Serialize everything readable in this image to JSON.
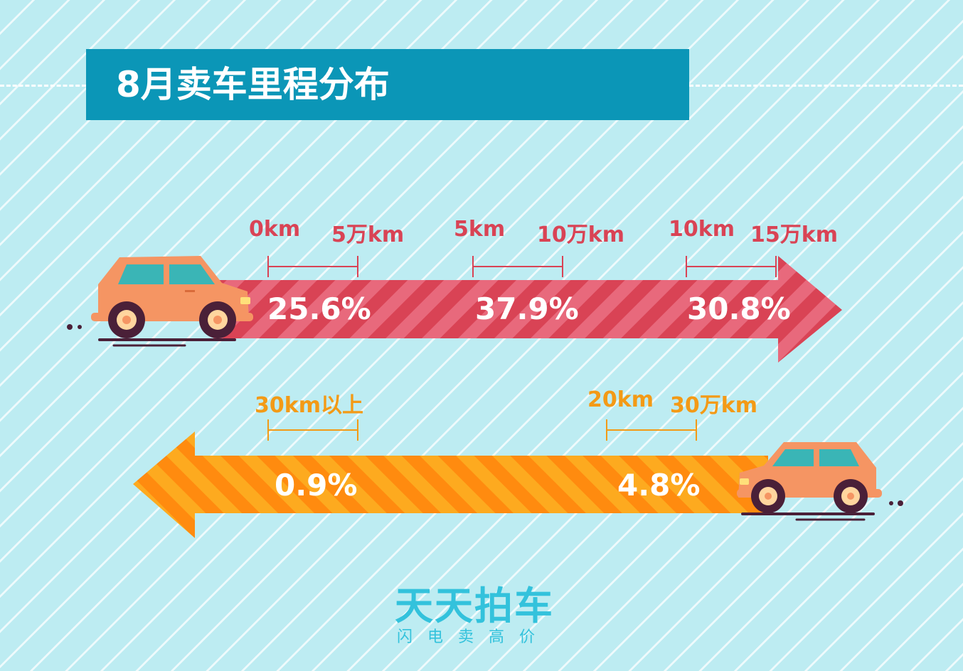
{
  "title": "8月卖车里程分布",
  "colors": {
    "banner": "#0b96b7",
    "top_arrow": "#d94355",
    "top_arrow_stripe": "#e8697c",
    "top_label": "#d94355",
    "bottom_arrow": "#ff8b0f",
    "bottom_arrow_stripe": "#fdaa1f",
    "bottom_label": "#f39a16",
    "car_body": "#f59563",
    "brand": "#33c2dc"
  },
  "chart_data": {
    "type": "bar",
    "categories": [
      "0km 5万km",
      "5km 10万km",
      "10km 15万km",
      "20km 30万km",
      "30km以上"
    ],
    "values": [
      25.6,
      37.9,
      30.8,
      4.8,
      0.9
    ],
    "unit": "%"
  },
  "segments_top": [
    {
      "from_label": "0km",
      "to_label": "5万km",
      "percent": "25.6%"
    },
    {
      "from_label": "5km",
      "to_label": "10万km",
      "percent": "37.9%"
    },
    {
      "from_label": "10km",
      "to_label": "15万km",
      "percent": "30.8%"
    }
  ],
  "segments_bottom": [
    {
      "label": "30km以上",
      "percent": "0.9%"
    },
    {
      "from_label": "20km",
      "to_label": "30万km",
      "percent": "4.8%"
    }
  ],
  "icons": [
    "car-icon-right",
    "car-icon-left",
    "arrow-right",
    "arrow-left"
  ],
  "brand": {
    "name": "天天拍车",
    "slogan": "闪电卖高价"
  }
}
